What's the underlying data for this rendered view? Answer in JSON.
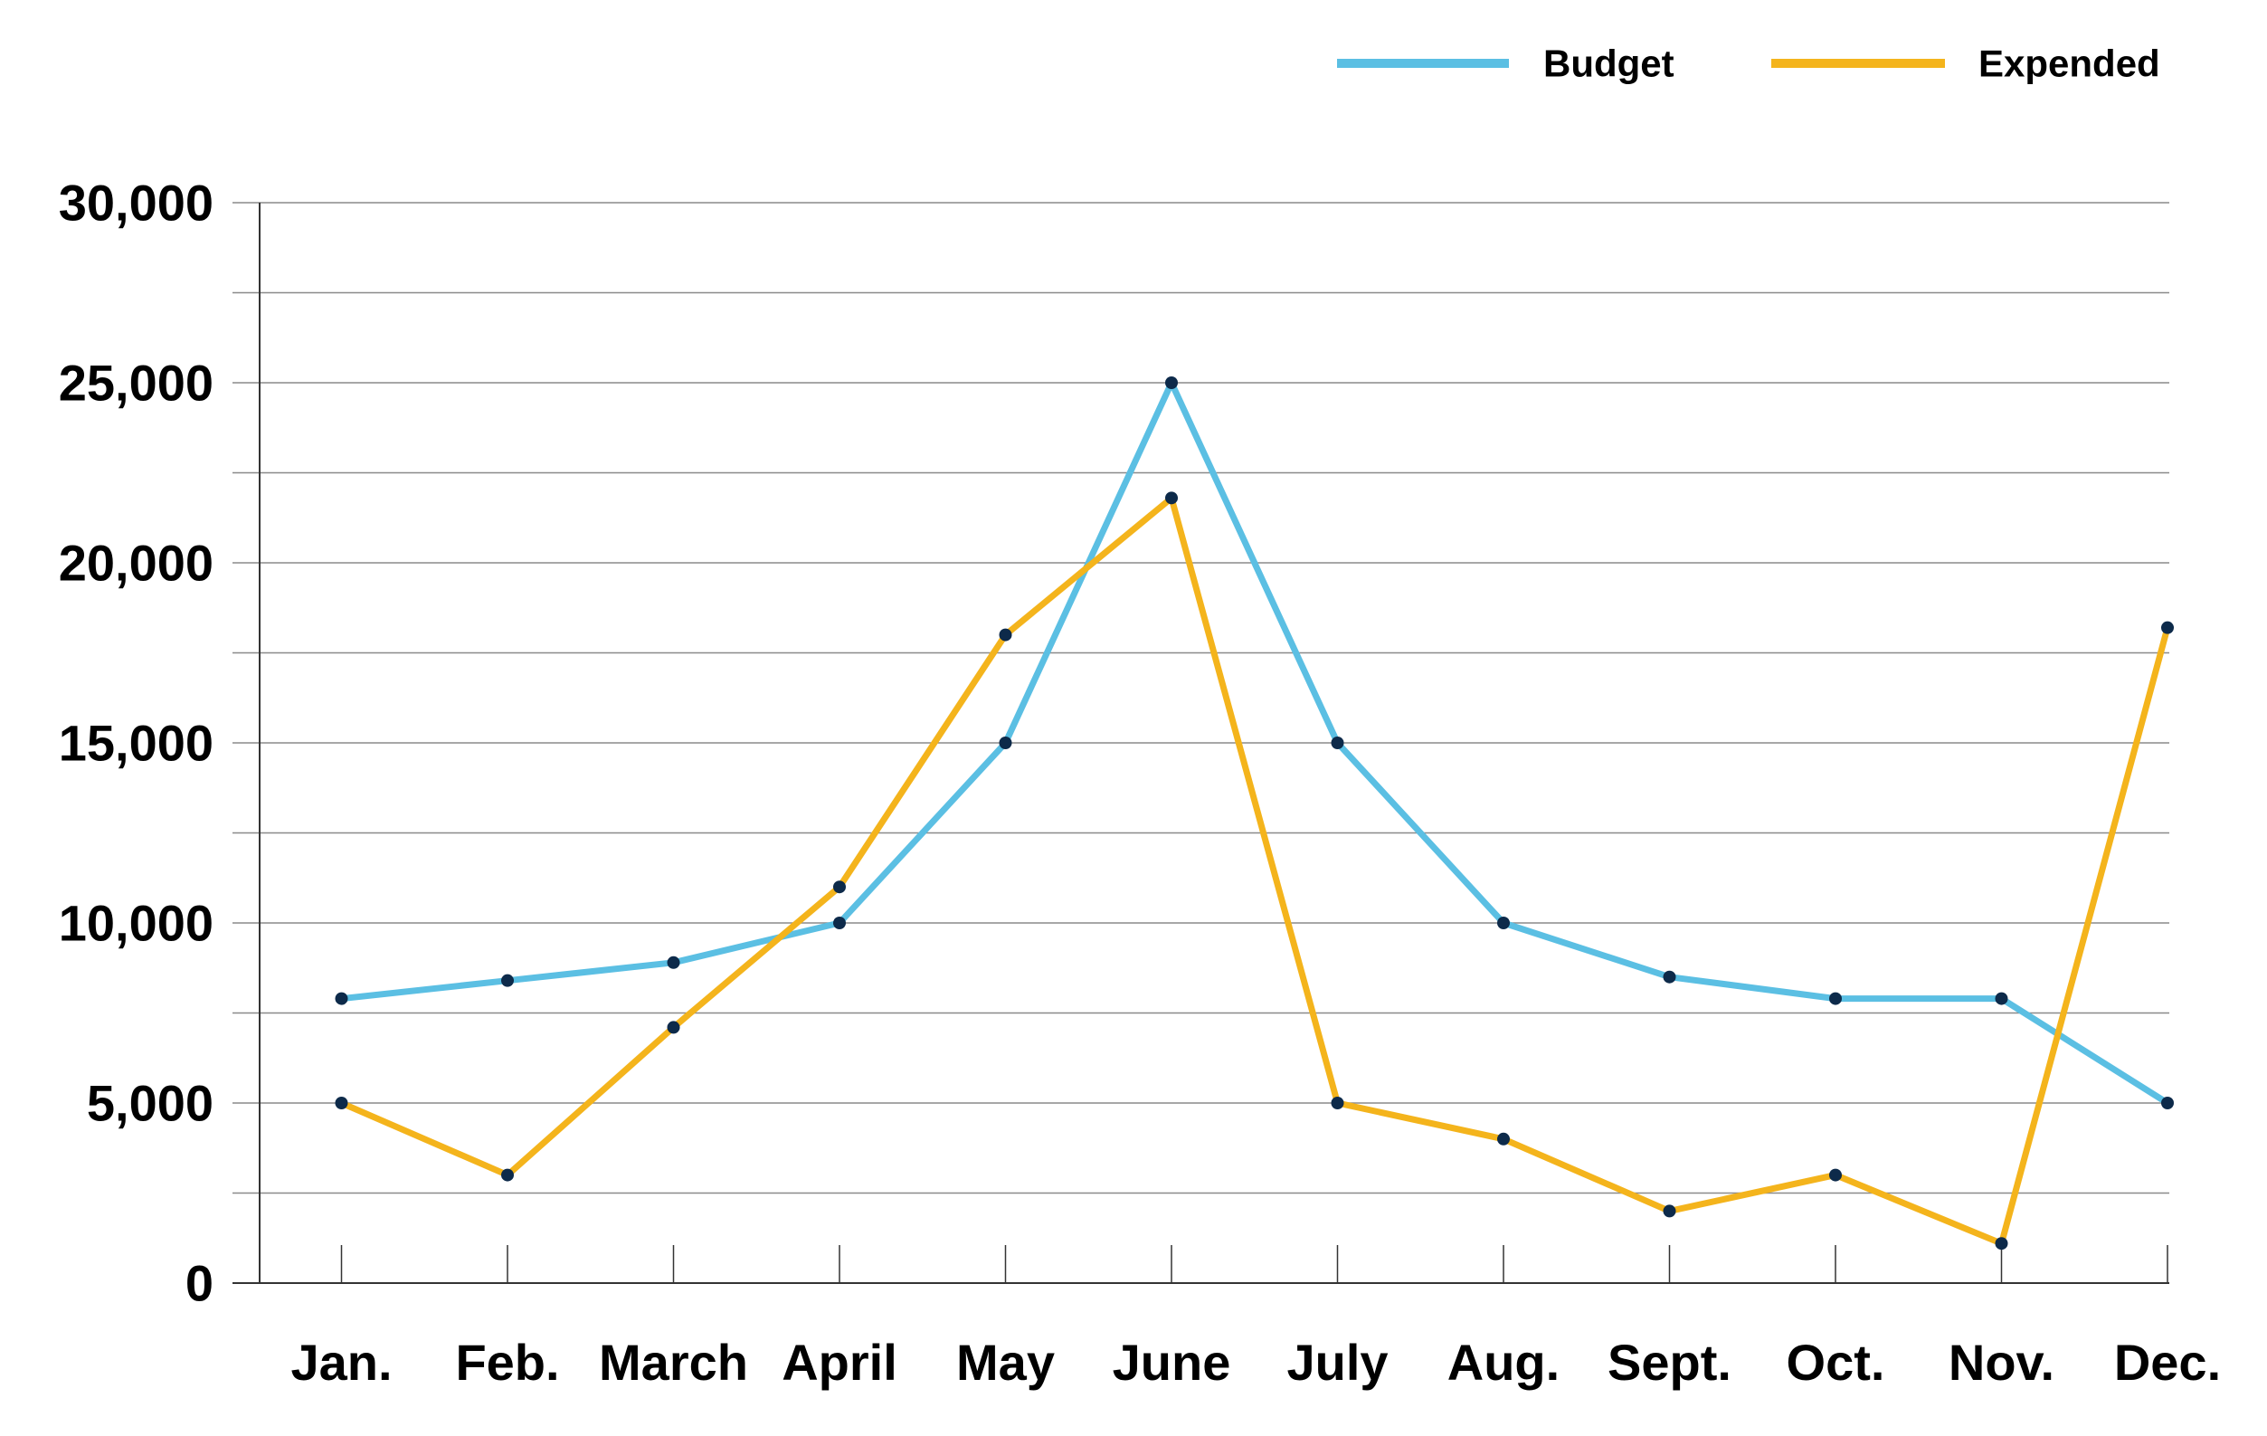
{
  "chart_data": {
    "type": "line",
    "title": "",
    "xlabel": "",
    "ylabel": "",
    "categories": [
      "Jan.",
      "Feb.",
      "March",
      "April",
      "May",
      "June",
      "July",
      "Aug.",
      "Sept.",
      "Oct.",
      "Nov.",
      "Dec."
    ],
    "yticks": [
      0,
      5000,
      10000,
      15000,
      20000,
      25000,
      30000
    ],
    "ytick_labels": [
      "0",
      "5,000",
      "10,000",
      "15,000",
      "20,000",
      "25,000",
      "30,000"
    ],
    "ylim": [
      0,
      30000
    ],
    "grid": true,
    "minor_grid_step": 2500,
    "legend_position": "top-right",
    "marker_color": "#0d2a4a",
    "series": [
      {
        "name": "Budget",
        "color": "#5bbfe3",
        "values": [
          7900,
          8400,
          8900,
          10000,
          15000,
          25000,
          15000,
          10000,
          8500,
          7900,
          7900,
          5000
        ]
      },
      {
        "name": "Expended",
        "color": "#f4b41c",
        "values": [
          5000,
          3000,
          7100,
          11000,
          18000,
          21800,
          5000,
          4000,
          2000,
          3000,
          1100,
          18200
        ]
      }
    ]
  }
}
